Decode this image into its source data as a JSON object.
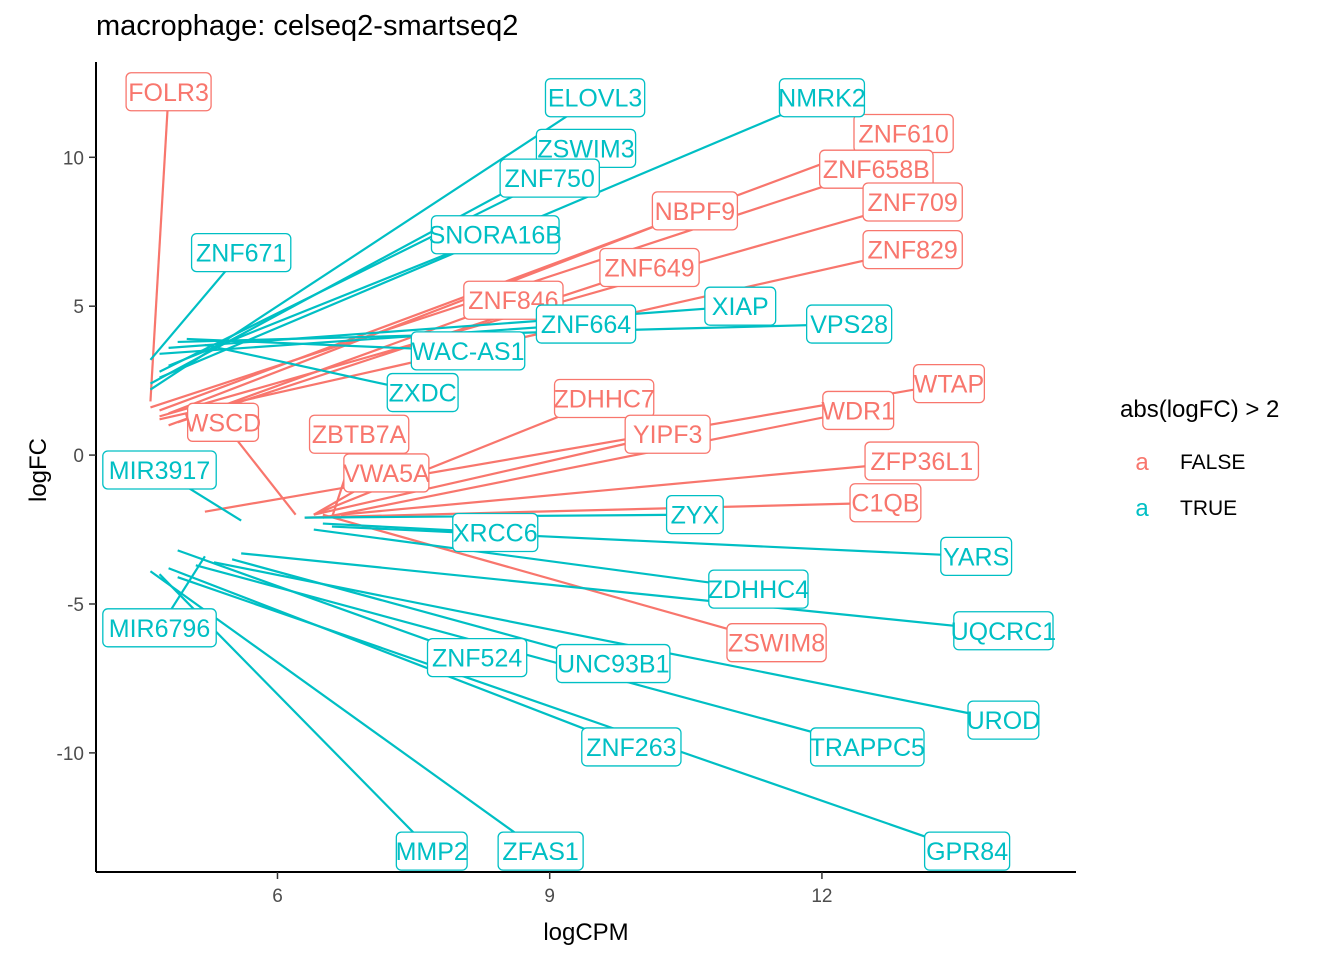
{
  "chart_data": {
    "type": "scatter",
    "title": "macrophage: celseq2-smartseq2",
    "xlabel": "logCPM",
    "ylabel": "logFC",
    "xlim": [
      4.0,
      14.8
    ],
    "ylim": [
      -14.0,
      13.2
    ],
    "xticks": [
      6,
      9,
      12
    ],
    "yticks": [
      -10,
      -5,
      0,
      5,
      10
    ],
    "xtick_labels": [
      "6",
      "9",
      "12"
    ],
    "ytick_labels": [
      "-10",
      "-5",
      "0",
      "5",
      "10"
    ],
    "grid": false,
    "legend": {
      "title": "abs(logFC) > 2",
      "position": "right"
    },
    "series": [
      {
        "name": "FALSE",
        "color": "#F8766D",
        "labels": [
          {
            "text": "FOLR3",
            "x": 4.8,
            "y": 12.2,
            "px": 4.6,
            "py": 1.8
          },
          {
            "text": "ZNF610",
            "x": 12.9,
            "y": 10.8,
            "px": 4.7,
            "py": 1.5
          },
          {
            "text": "ZNF658B",
            "x": 12.6,
            "y": 9.6,
            "px": 4.6,
            "py": 1.6
          },
          {
            "text": "ZNF709",
            "x": 13.0,
            "y": 8.5,
            "px": 4.7,
            "py": 1.3
          },
          {
            "text": "NBPF9",
            "x": 10.6,
            "y": 8.2,
            "px": 4.8,
            "py": 1.4
          },
          {
            "text": "ZNF829",
            "x": 13.0,
            "y": 6.9,
            "px": 4.7,
            "py": 1.2
          },
          {
            "text": "ZNF649",
            "x": 10.1,
            "y": 6.3,
            "px": 4.9,
            "py": 1.1
          },
          {
            "text": "ZNF846",
            "x": 8.6,
            "y": 5.2,
            "px": 4.8,
            "py": 1.0
          },
          {
            "text": "WTAP",
            "x": 13.4,
            "y": 2.4,
            "px": 5.2,
            "py": -1.9
          },
          {
            "text": "ZDHHC7",
            "x": 9.6,
            "y": 1.9,
            "px": 6.4,
            "py": -2.0
          },
          {
            "text": "WDR1",
            "x": 12.4,
            "y": 1.5,
            "px": 6.5,
            "py": -2.1
          },
          {
            "text": "WSCD",
            "x": 5.4,
            "y": 1.1,
            "px": 6.2,
            "py": -2.0
          },
          {
            "text": "ZBTB7A",
            "x": 6.9,
            "y": 0.7,
            "px": 6.6,
            "py": -2.1
          },
          {
            "text": "YIPF3",
            "x": 10.3,
            "y": 0.7,
            "px": 6.4,
            "py": -2.0
          },
          {
            "text": "ZFP36L1",
            "x": 13.1,
            "y": -0.2,
            "px": 6.7,
            "py": -2.0
          },
          {
            "text": "VWA5A",
            "x": 7.2,
            "y": -0.6,
            "px": 6.4,
            "py": -2.0
          },
          {
            "text": "C1QB",
            "x": 12.7,
            "y": -1.6,
            "px": 6.3,
            "py": -2.1
          },
          {
            "text": "ZSWIM8",
            "x": 11.5,
            "y": -6.3,
            "px": 6.5,
            "py": -2.0
          }
        ]
      },
      {
        "name": "TRUE",
        "color": "#00BFC4",
        "labels": [
          {
            "text": "ELOVL3",
            "x": 9.5,
            "y": 12.0,
            "px": 4.6,
            "py": 2.2
          },
          {
            "text": "NMRK2",
            "x": 12.0,
            "y": 12.0,
            "px": 4.7,
            "py": 2.6
          },
          {
            "text": "ZSWIM3",
            "x": 9.4,
            "y": 10.3,
            "px": 4.6,
            "py": 2.4
          },
          {
            "text": "ZNF750",
            "x": 9.0,
            "y": 9.3,
            "px": 4.7,
            "py": 2.8
          },
          {
            "text": "SNORA16B",
            "x": 8.4,
            "y": 7.4,
            "px": 4.8,
            "py": 3.0
          },
          {
            "text": "ZNF671",
            "x": 5.6,
            "y": 6.8,
            "px": 4.6,
            "py": 3.2
          },
          {
            "text": "ZNF664",
            "x": 9.4,
            "y": 4.4,
            "px": 4.7,
            "py": 3.4
          },
          {
            "text": "XIAP",
            "x": 11.1,
            "y": 5.0,
            "px": 4.8,
            "py": 3.6
          },
          {
            "text": "VPS28",
            "x": 12.3,
            "y": 4.4,
            "px": 4.9,
            "py": 3.8
          },
          {
            "text": "WAC-AS1",
            "x": 8.1,
            "y": 3.5,
            "px": 5.0,
            "py": 3.9
          },
          {
            "text": "ZXDC",
            "x": 7.6,
            "y": 2.1,
            "px": 5.2,
            "py": 3.7
          },
          {
            "text": "MIR3917",
            "x": 4.7,
            "y": -0.5,
            "px": 5.6,
            "py": -2.2
          },
          {
            "text": "ZYX",
            "x": 10.6,
            "y": -2.0,
            "px": 6.3,
            "py": -2.1
          },
          {
            "text": "XRCC6",
            "x": 8.4,
            "y": -2.6,
            "px": 6.5,
            "py": -2.3
          },
          {
            "text": "YARS",
            "x": 13.7,
            "y": -3.4,
            "px": 6.6,
            "py": -2.4
          },
          {
            "text": "ZDHHC4",
            "x": 11.3,
            "y": -4.5,
            "px": 6.4,
            "py": -2.5
          },
          {
            "text": "UQCRC1",
            "x": 14.0,
            "y": -5.9,
            "px": 5.6,
            "py": -3.3
          },
          {
            "text": "MIR6796",
            "x": 4.7,
            "y": -5.8,
            "px": 5.2,
            "py": -3.4
          },
          {
            "text": "ZNF524",
            "x": 8.2,
            "y": -6.8,
            "px": 4.9,
            "py": -3.2
          },
          {
            "text": "UNC93B1",
            "x": 9.7,
            "y": -7.0,
            "px": 5.5,
            "py": -3.5
          },
          {
            "text": "UROD",
            "x": 14.0,
            "y": -8.9,
            "px": 5.3,
            "py": -3.6
          },
          {
            "text": "TRAPPC5",
            "x": 12.5,
            "y": -9.8,
            "px": 5.1,
            "py": -3.7
          },
          {
            "text": "ZNF263",
            "x": 9.9,
            "y": -9.8,
            "px": 4.8,
            "py": -3.8
          },
          {
            "text": "ZFAS1",
            "x": 8.9,
            "y": -13.3,
            "px": 4.6,
            "py": -3.9
          },
          {
            "text": "MMP2",
            "x": 7.7,
            "y": -13.3,
            "px": 4.7,
            "py": -4.0
          },
          {
            "text": "GPR84",
            "x": 13.6,
            "y": -13.3,
            "px": 4.9,
            "py": -4.1
          }
        ]
      }
    ]
  }
}
